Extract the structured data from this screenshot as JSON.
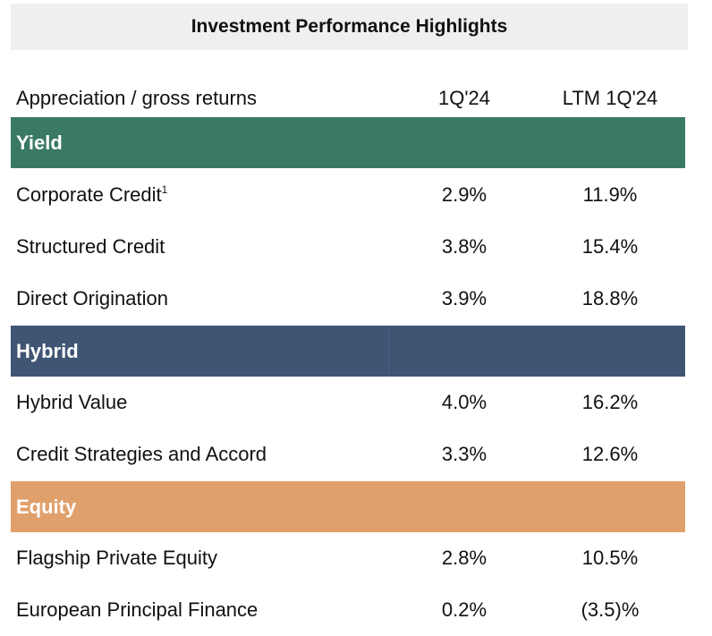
{
  "title": "Investment Performance Highlights",
  "header": {
    "label": "Appreciation / gross returns",
    "col1": "1Q'24",
    "col2": "LTM 1Q'24"
  },
  "colors": {
    "yield": "#3a7a63",
    "hybrid": "#3f5573",
    "equity": "#e0a06b"
  },
  "sections": [
    {
      "name": "Yield",
      "rows": [
        {
          "label": "Corporate Credit",
          "footnote": "1",
          "q": "2.9%",
          "ltm": "11.9%"
        },
        {
          "label": "Structured Credit",
          "q": "3.8%",
          "ltm": "15.4%"
        },
        {
          "label": "Direct Origination",
          "q": "3.9%",
          "ltm": "18.8%"
        }
      ]
    },
    {
      "name": "Hybrid",
      "rows": [
        {
          "label": "Hybrid Value",
          "q": "4.0%",
          "ltm": "16.2%"
        },
        {
          "label": "Credit Strategies and Accord",
          "q": "3.3%",
          "ltm": "12.6%"
        }
      ]
    },
    {
      "name": "Equity",
      "rows": [
        {
          "label": "Flagship Private Equity",
          "q": "2.8%",
          "ltm": "10.5%"
        },
        {
          "label": "European Principal Finance",
          "q": "0.2%",
          "ltm": "(3.5)%"
        }
      ]
    }
  ]
}
